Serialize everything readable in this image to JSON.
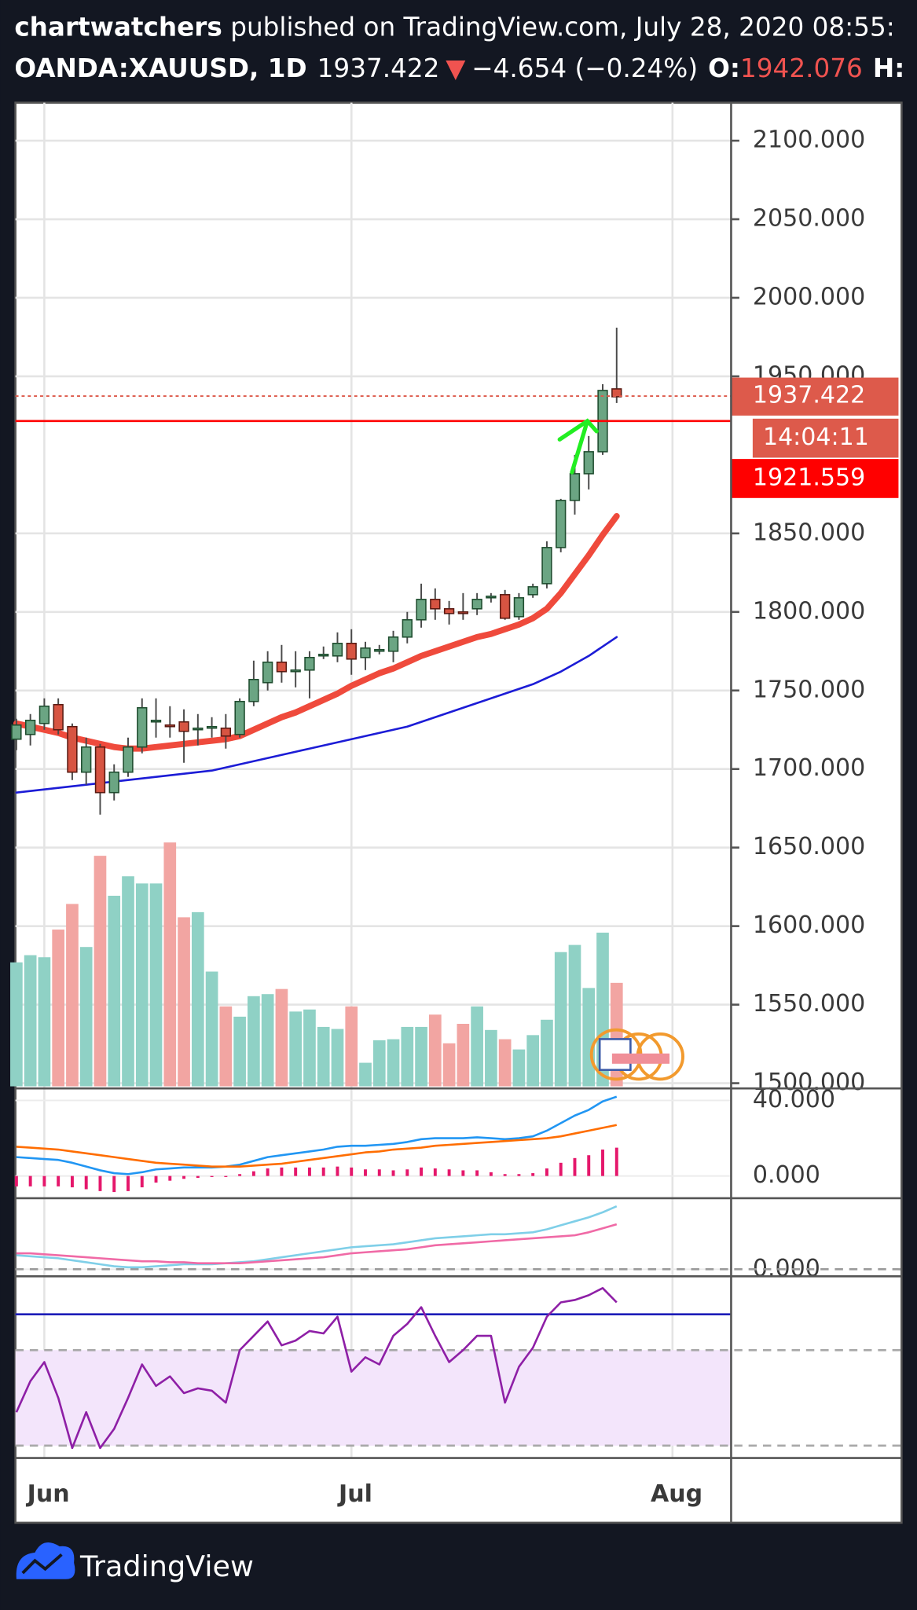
{
  "header": {
    "author": "chartwatchers",
    "published": "published on TradingView.com, July 28, 2020 08:55:",
    "symbol": "OANDA:XAUUSD, 1D",
    "last": "1937.422",
    "arrow": "▼",
    "change": "−4.654 (−0.24%)",
    "open_label": "O:",
    "open_value": "1942.076",
    "high_label": "H:"
  },
  "footer": {
    "brand": "TradingView"
  },
  "chart_data": {
    "type": "candlestick",
    "xlim": [
      -0.07,
      51.2
    ],
    "xticks": [
      {
        "value": 2,
        "label": "Jun"
      },
      {
        "value": 24,
        "label": "Jul"
      },
      {
        "value": 47,
        "label": "Aug"
      }
    ],
    "ylim": [
      1498,
      2124.2
    ],
    "yticks": [
      {
        "value": 2100,
        "label": "2100.000"
      },
      {
        "value": 2050,
        "label": "2050.000"
      },
      {
        "value": 2000,
        "label": "2000.000"
      },
      {
        "value": 1950,
        "label": "1950.000"
      },
      {
        "value": 1850,
        "label": "1850.000"
      },
      {
        "value": 1800,
        "label": "1800.000"
      },
      {
        "value": 1750,
        "label": "1750.000"
      },
      {
        "value": 1700,
        "label": "1700.000"
      },
      {
        "value": 1650,
        "label": "1650.000"
      },
      {
        "value": 1600,
        "label": "1600.000"
      },
      {
        "value": 1550,
        "label": "1550.000"
      },
      {
        "value": 1500,
        "label": "1500.000"
      }
    ],
    "grid": true,
    "up_color": "#6ba583",
    "down_color": "#d75442",
    "open": [
      1719,
      1722,
      1729,
      1741,
      1727,
      1698,
      1714,
      1685,
      1698,
      1714,
      1730,
      1728,
      1730,
      1726,
      1727,
      1726,
      1722,
      1743,
      1755,
      1768,
      1763,
      1763,
      1773,
      1772,
      1780,
      1771,
      1776,
      1775,
      1784,
      1795,
      1808,
      1802,
      1800,
      1802,
      1810,
      1811,
      1797,
      1811,
      1818,
      1841,
      1871,
      1888,
      1902,
      1942
    ],
    "high": [
      1732,
      1735,
      1745,
      1745,
      1729,
      1720,
      1716,
      1703,
      1720,
      1745,
      1745,
      1740,
      1738,
      1735,
      1733,
      1735,
      1745,
      1769,
      1775,
      1779,
      1775,
      1775,
      1778,
      1787,
      1789,
      1781,
      1779,
      1788,
      1800,
      1818,
      1815,
      1807,
      1812,
      1812,
      1812,
      1814,
      1812,
      1818,
      1845,
      1872,
      1900,
      1912,
      1945,
      1981
    ],
    "low": [
      1712,
      1715,
      1725,
      1722,
      1693,
      1690,
      1671,
      1680,
      1695,
      1710,
      1720,
      1720,
      1704,
      1715,
      1720,
      1713,
      1720,
      1740,
      1750,
      1755,
      1752,
      1745,
      1770,
      1768,
      1760,
      1763,
      1773,
      1768,
      1780,
      1790,
      1795,
      1792,
      1795,
      1798,
      1806,
      1795,
      1795,
      1809,
      1815,
      1838,
      1862,
      1878,
      1900,
      1933
    ],
    "close": [
      1728,
      1731,
      1740,
      1725,
      1698,
      1714,
      1685,
      1698,
      1714,
      1739,
      1731,
      1727,
      1724,
      1726,
      1727,
      1721,
      1743,
      1757,
      1768,
      1762,
      1763,
      1771,
      1773,
      1780,
      1770,
      1777,
      1776,
      1784,
      1795,
      1808,
      1802,
      1799,
      1799,
      1808,
      1810,
      1796,
      1809,
      1816,
      1841,
      1871,
      1888,
      1902,
      1941,
      1937
    ],
    "moving_averages": [
      {
        "color": "#ef4a3c",
        "width": 6,
        "values": [
          1729,
          1727,
          1725,
          1723,
          1720,
          1718,
          1716,
          1714,
          1713,
          1713,
          1714,
          1715,
          1716,
          1717,
          1718,
          1719,
          1721,
          1725,
          1729,
          1733,
          1736,
          1740,
          1744,
          1748,
          1753,
          1757,
          1761,
          1764,
          1768,
          1772,
          1775,
          1778,
          1781,
          1784,
          1786,
          1789,
          1792,
          1796,
          1802,
          1812,
          1824,
          1836,
          1849,
          1861
        ]
      },
      {
        "color": "#1c1cd6",
        "width": 2,
        "values": [
          1685,
          1686,
          1687,
          1688,
          1689,
          1690,
          1691,
          1692,
          1693,
          1694,
          1695,
          1696,
          1697,
          1698,
          1699,
          1701,
          1703,
          1705,
          1707,
          1709,
          1711,
          1713,
          1715,
          1717,
          1719,
          1721,
          1723,
          1725,
          1727,
          1730,
          1733,
          1736,
          1739,
          1742,
          1745,
          1748,
          1751,
          1754,
          1758,
          1762,
          1767,
          1772,
          1778,
          1784
        ]
      }
    ],
    "volume": {
      "ylim": [
        0,
        960
      ],
      "up_color": "#8fd1c5",
      "down_color": "#f2a5a2",
      "values": [
        121,
        128,
        126,
        153,
        178,
        136,
        225,
        186,
        205,
        198,
        198,
        238,
        165,
        170,
        112,
        78,
        68,
        88,
        90,
        95,
        73,
        75,
        58,
        56,
        78,
        23,
        45,
        46,
        58,
        58,
        70,
        42,
        61,
        78,
        55,
        46,
        36,
        50,
        65,
        131,
        138,
        96,
        150,
        101
      ]
    },
    "price_lines": {
      "last": 1937.422,
      "last_color": "#dd5a4b",
      "countdown": "14:04:11",
      "level": 1921.559,
      "level_color": "#ff0000"
    },
    "panes": [
      {
        "ylim": [
          -10.7,
          45.3
        ],
        "yticks": [
          {
            "value": 40,
            "label": "40.000"
          },
          {
            "value": 0,
            "label": "0.000"
          }
        ],
        "histogram": {
          "color": "#e5176b",
          "values": [
            -5.5,
            -5.5,
            -5.5,
            -5.5,
            -6,
            -7,
            -8,
            -8.5,
            -8,
            -6,
            -3.5,
            -2.5,
            -1.5,
            -1,
            -0.5,
            0,
            1,
            2.5,
            4,
            4.5,
            4.5,
            4.5,
            4.5,
            5,
            4.5,
            3.5,
            3.5,
            3,
            3.5,
            4.5,
            4,
            3.5,
            3,
            3,
            2,
            1,
            1,
            1.5,
            4,
            7,
            9.5,
            11,
            14,
            15
          ]
        },
        "lines": [
          {
            "color": "#2196f3",
            "values": [
              10,
              9.5,
              9,
              8.5,
              7,
              5,
              3,
              1.5,
              1,
              2,
              3.5,
              4,
              4.5,
              4.5,
              4.5,
              5,
              6,
              8,
              10,
              11,
              12,
              13,
              14,
              15.5,
              16,
              16,
              16.5,
              17,
              18,
              19.5,
              20,
              20,
              20,
              20.5,
              20,
              19.5,
              20,
              21,
              24,
              28,
              32,
              35,
              39.5,
              42
            ]
          },
          {
            "color": "#ff6d00",
            "values": [
              15.5,
              15,
              14.5,
              14,
              13,
              12,
              11,
              10,
              9,
              8,
              7,
              6.5,
              6,
              5.5,
              5,
              5,
              5,
              5.5,
              6,
              6.5,
              7.5,
              8.5,
              9.5,
              10.5,
              11.5,
              12.5,
              13,
              14,
              14.5,
              15,
              16,
              16.5,
              17,
              17.5,
              18,
              18.5,
              19,
              19.5,
              20,
              21,
              22.5,
              24,
              25.5,
              27
            ]
          }
        ]
      },
      {
        "ylim": [
          -6,
          69
        ],
        "yticks": [
          {
            "value": 0,
            "label": "0.000"
          }
        ],
        "hlines": [
          {
            "value": 0,
            "color": "#9a9a9a",
            "dashed": true
          }
        ],
        "lines": [
          {
            "color": "#7fcfe8",
            "values": [
              14,
              13,
              12,
              11,
              9,
              7,
              5,
              3,
              2,
              2,
              3,
              4,
              5,
              5,
              5,
              6,
              7,
              8,
              10,
              12,
              14,
              16,
              18,
              20,
              22,
              23,
              24,
              25,
              27,
              29,
              31,
              32,
              33,
              34,
              35,
              35,
              36,
              37,
              40,
              44,
              48,
              52,
              57,
              63
            ]
          },
          {
            "color": "#f06aa6",
            "values": [
              16,
              16,
              15,
              14,
              13,
              12,
              11,
              10,
              9,
              8,
              8,
              7,
              7,
              6,
              6,
              6,
              6,
              7,
              8,
              9,
              10,
              11,
              12,
              14,
              16,
              17,
              18,
              19,
              20,
              22,
              24,
              25,
              26,
              27,
              28,
              29,
              30,
              31,
              32,
              33,
              34,
              37,
              41,
              45
            ]
          }
        ]
      },
      {
        "ylim": [
          24.8,
          100.5
        ],
        "band": [
          30,
          70
        ],
        "band_color": "#f3e5fb",
        "hlines": [
          {
            "value": 70,
            "color": "#a8a8a8",
            "dashed": true
          },
          {
            "value": 30,
            "color": "#a8a8a8",
            "dashed": true
          },
          {
            "value": 85,
            "color": "#1c1cb8",
            "dashed": false
          }
        ],
        "lines": [
          {
            "color": "#8e1fa6",
            "values": [
              44,
              57,
              65,
              50,
              29,
              44,
              29,
              37,
              50,
              64,
              55,
              59,
              52,
              54,
              53,
              48,
              70,
              76,
              82,
              72,
              74,
              78,
              77,
              84,
              61,
              67,
              64,
              76,
              81,
              88,
              76,
              65,
              70,
              76,
              76,
              48,
              63,
              71,
              84,
              90,
              91,
              93,
              96,
              90
            ]
          }
        ]
      }
    ]
  }
}
